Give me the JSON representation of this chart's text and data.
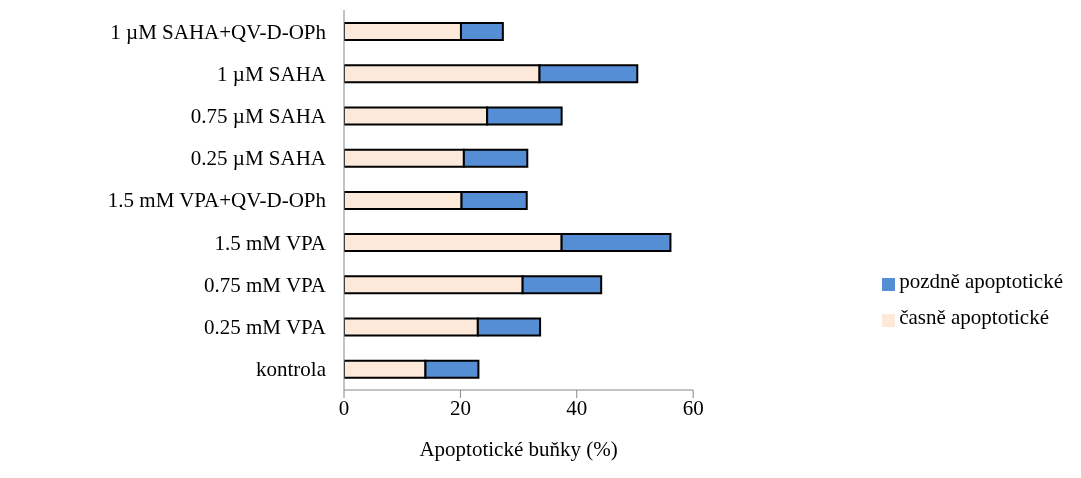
{
  "chart_data": {
    "type": "bar",
    "orientation": "horizontal",
    "stacked": true,
    "xlabel": "Apoptotické buňky (%)",
    "categories": [
      "1 µM SAHA+QV-D-OPh",
      "1 µM SAHA",
      "0.75 µM SAHA",
      "0.25 µM SAHA",
      "1.5 mM VPA+QV-D-OPh",
      "1.5 mM VPA",
      "0.75 mM VPA",
      "0.25 mM VPA",
      "kontrola"
    ],
    "series": [
      {
        "name": "časně apoptotické",
        "color": "#fde9d9",
        "values": [
          20.1,
          33.6,
          24.6,
          20.6,
          20.2,
          37.4,
          30.7,
          23.0,
          14.0
        ]
      },
      {
        "name": "pozdně apoptotické",
        "color": "#558ed5",
        "values": [
          7.2,
          16.8,
          12.8,
          10.9,
          11.2,
          18.7,
          13.5,
          10.7,
          9.1
        ]
      }
    ],
    "xlim": [
      0,
      60
    ],
    "xticks": [
      0,
      20,
      40,
      60
    ],
    "grid": false,
    "legend": "right"
  }
}
